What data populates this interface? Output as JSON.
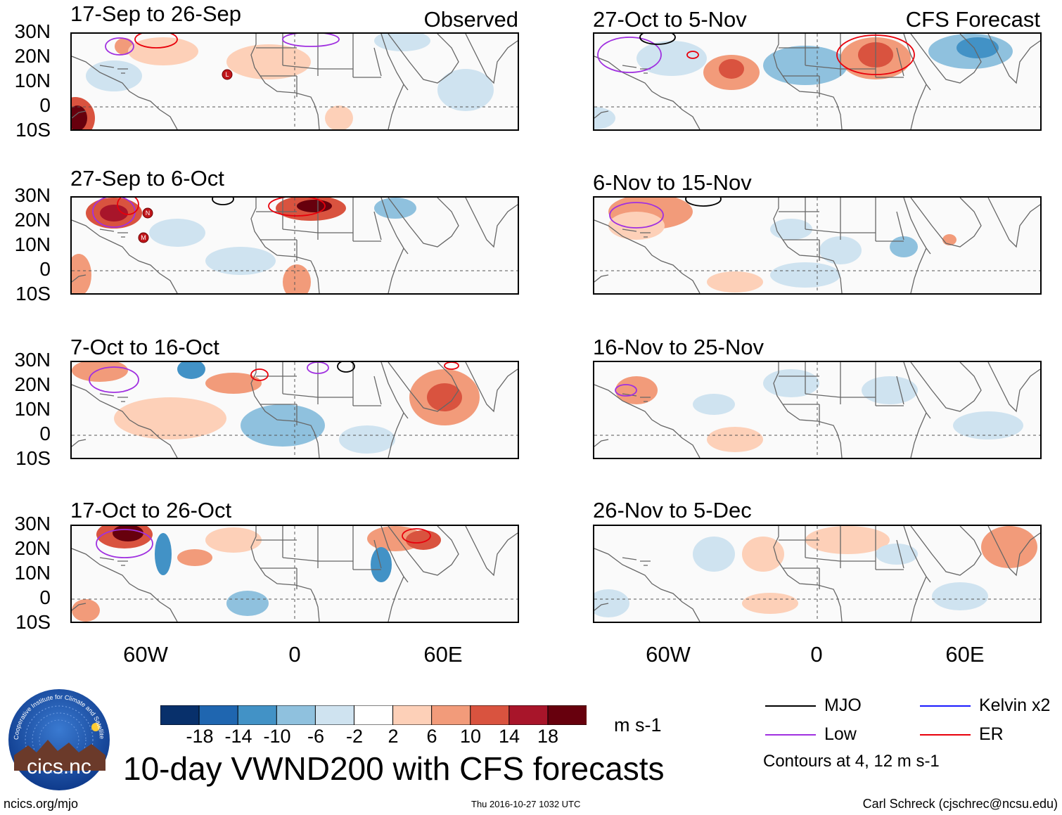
{
  "header": {
    "observed_label": "Observed",
    "forecast_label": "CFS Forecast"
  },
  "panels": {
    "left": [
      {
        "title": "17-Sep to 26-Sep"
      },
      {
        "title": "27-Sep to 6-Oct"
      },
      {
        "title": "7-Oct to 16-Oct"
      },
      {
        "title": "17-Oct to 26-Oct"
      }
    ],
    "right": [
      {
        "title": "27-Oct to 5-Nov"
      },
      {
        "title": "6-Nov to 15-Nov"
      },
      {
        "title": "16-Nov to 25-Nov"
      },
      {
        "title": "26-Nov to 5-Dec"
      }
    ]
  },
  "axes": {
    "lat_labels": [
      "30N",
      "20N",
      "10N",
      "0",
      "10S"
    ],
    "lon_labels": [
      "60W",
      "0",
      "60E"
    ]
  },
  "storm_markers": [
    "L",
    "N",
    "M"
  ],
  "colorbar": {
    "labels": [
      "-18",
      "-14",
      "-10",
      "-6",
      "-2",
      "2",
      "6",
      "10",
      "14",
      "18"
    ],
    "colors": [
      "#08306b",
      "#1f66b0",
      "#4292c6",
      "#8fc1de",
      "#cfe3f0",
      "#ffffff",
      "#fdd0b8",
      "#f29b7a",
      "#d9533f",
      "#a8152a",
      "#67000d"
    ],
    "units": "m s-1"
  },
  "legend": {
    "mjo": "MJO",
    "kelvin": "Kelvin x2",
    "low": "Low",
    "er": "ER",
    "colors": {
      "mjo": "#000000",
      "kelvin": "#1a1aff",
      "low": "#a030e0",
      "er": "#e8000b"
    },
    "contours_note": "Contours at 4, 12 m s-1"
  },
  "title": "10-day VWND200 with CFS forecasts",
  "logo_text": "cics.nc",
  "logo_ring_text": "Cooperative Institute for Climate and Satellites",
  "footer": {
    "left": "ncics.org/mjo",
    "middle": "Thu 2016-10-27 1032 UTC",
    "right": "Carl Schreck (cjschrec@ncsu.edu)"
  }
}
